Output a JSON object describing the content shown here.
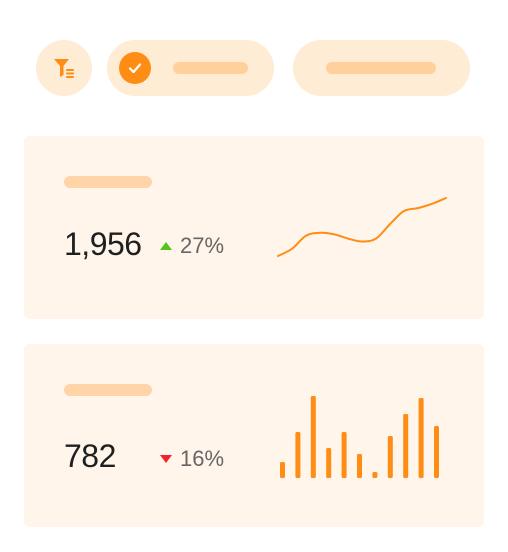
{
  "colors": {
    "accent": "#ff8c14",
    "up": "#52c41a",
    "down": "#f5222d",
    "card_bg": "#fff5ea",
    "chip_bg": "#ffecd4"
  },
  "toolbar": {
    "filter_icon": "filter-list-icon",
    "chip_selected_icon": "check-icon"
  },
  "cards": [
    {
      "value": "1,956",
      "delta": "27%",
      "trend": "up",
      "chart_data": {
        "type": "line",
        "values": [
          0,
          5,
          14,
          16,
          15,
          12,
          10,
          12,
          22,
          31,
          33,
          36,
          40
        ]
      }
    },
    {
      "value": "782",
      "delta": "16%",
      "trend": "down",
      "chart_data": {
        "type": "bar",
        "values": [
          16,
          46,
          82,
          30,
          46,
          24,
          6,
          42,
          64,
          80,
          52
        ]
      }
    }
  ]
}
